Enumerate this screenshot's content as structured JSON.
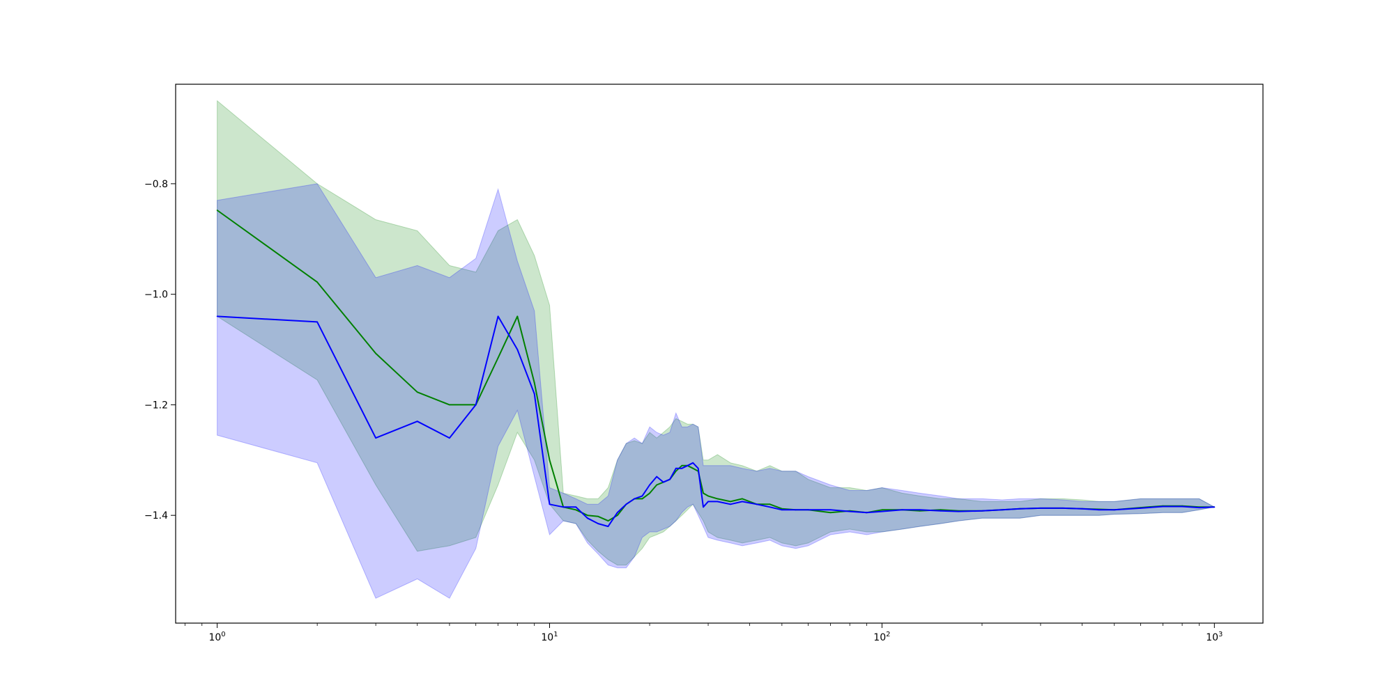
{
  "chart_data": {
    "type": "line",
    "title": "",
    "xlabel": "",
    "ylabel": "",
    "xscale": "log",
    "xlim": [
      0.75,
      1400
    ],
    "ylim": [
      -1.595,
      -0.62
    ],
    "grid": false,
    "legend": "none",
    "x_ticks": [
      {
        "value": 1,
        "base": "10",
        "exp": "0"
      },
      {
        "value": 10,
        "base": "10",
        "exp": "1"
      },
      {
        "value": 100,
        "base": "10",
        "exp": "2"
      },
      {
        "value": 1000,
        "base": "10",
        "exp": "3"
      }
    ],
    "y_ticks": [
      {
        "value": -0.8,
        "label": "−0.8"
      },
      {
        "value": -1.0,
        "label": "−1.0"
      },
      {
        "value": -1.2,
        "label": "−1.2"
      },
      {
        "value": -1.4,
        "label": "−1.4"
      }
    ],
    "series": [
      {
        "color": "#008000",
        "fill": "#008000",
        "x": [
          1,
          2,
          3,
          4,
          5,
          6,
          7,
          8,
          9,
          10,
          11,
          12,
          13,
          14,
          15,
          16,
          17,
          18,
          19,
          20,
          21,
          22,
          23,
          24,
          25,
          26,
          27,
          28,
          29,
          30,
          32,
          35,
          38,
          42,
          46,
          50,
          55,
          60,
          70,
          80,
          90,
          100,
          115,
          130,
          150,
          170,
          200,
          230,
          260,
          300,
          350,
          400,
          450,
          500,
          600,
          700,
          800,
          900,
          1000
        ],
        "y": [
          -0.848,
          -0.978,
          -1.107,
          -1.177,
          -1.2,
          -1.2,
          -1.115,
          -1.04,
          -1.16,
          -1.3,
          -1.385,
          -1.39,
          -1.4,
          -1.402,
          -1.41,
          -1.4,
          -1.38,
          -1.37,
          -1.37,
          -1.36,
          -1.345,
          -1.34,
          -1.335,
          -1.32,
          -1.31,
          -1.31,
          -1.315,
          -1.32,
          -1.36,
          -1.365,
          -1.37,
          -1.375,
          -1.37,
          -1.38,
          -1.38,
          -1.388,
          -1.39,
          -1.39,
          -1.395,
          -1.392,
          -1.395,
          -1.39,
          -1.39,
          -1.392,
          -1.39,
          -1.392,
          -1.392,
          -1.39,
          -1.388,
          -1.387,
          -1.387,
          -1.388,
          -1.389,
          -1.39,
          -1.386,
          -1.383,
          -1.383,
          -1.385,
          -1.385
        ],
        "upper": [
          -0.65,
          -0.8,
          -0.865,
          -0.885,
          -0.948,
          -0.96,
          -0.885,
          -0.865,
          -0.93,
          -1.02,
          -1.36,
          -1.365,
          -1.37,
          -1.37,
          -1.35,
          -1.3,
          -1.27,
          -1.265,
          -1.27,
          -1.25,
          -1.26,
          -1.25,
          -1.24,
          -1.225,
          -1.23,
          -1.235,
          -1.235,
          -1.24,
          -1.3,
          -1.3,
          -1.29,
          -1.305,
          -1.31,
          -1.32,
          -1.31,
          -1.32,
          -1.32,
          -1.335,
          -1.35,
          -1.35,
          -1.355,
          -1.35,
          -1.36,
          -1.365,
          -1.37,
          -1.37,
          -1.375,
          -1.375,
          -1.375,
          -1.37,
          -1.37,
          -1.372,
          -1.375,
          -1.375,
          -1.37,
          -1.37,
          -1.37,
          -1.37,
          -1.385
        ],
        "lower": [
          -1.04,
          -1.155,
          -1.345,
          -1.465,
          -1.455,
          -1.44,
          -1.345,
          -1.25,
          -1.3,
          -1.38,
          -1.41,
          -1.415,
          -1.445,
          -1.465,
          -1.48,
          -1.49,
          -1.49,
          -1.475,
          -1.46,
          -1.44,
          -1.435,
          -1.43,
          -1.42,
          -1.41,
          -1.4,
          -1.39,
          -1.38,
          -1.395,
          -1.41,
          -1.43,
          -1.44,
          -1.445,
          -1.45,
          -1.445,
          -1.44,
          -1.45,
          -1.455,
          -1.45,
          -1.43,
          -1.425,
          -1.43,
          -1.43,
          -1.425,
          -1.42,
          -1.415,
          -1.41,
          -1.405,
          -1.405,
          -1.405,
          -1.4,
          -1.4,
          -1.4,
          -1.4,
          -1.398,
          -1.397,
          -1.395,
          -1.395,
          -1.39,
          -1.385
        ]
      },
      {
        "color": "#0000ff",
        "fill": "#0000ff",
        "x": [
          1,
          2,
          3,
          4,
          5,
          6,
          7,
          8,
          9,
          10,
          11,
          12,
          13,
          14,
          15,
          16,
          17,
          18,
          19,
          20,
          21,
          22,
          23,
          24,
          25,
          26,
          27,
          28,
          29,
          30,
          32,
          35,
          38,
          42,
          46,
          50,
          55,
          60,
          70,
          80,
          90,
          100,
          115,
          130,
          150,
          170,
          200,
          230,
          260,
          300,
          350,
          400,
          450,
          500,
          600,
          700,
          800,
          900,
          1000
        ],
        "y": [
          -1.04,
          -1.05,
          -1.26,
          -1.23,
          -1.26,
          -1.2,
          -1.04,
          -1.1,
          -1.18,
          -1.38,
          -1.385,
          -1.385,
          -1.405,
          -1.415,
          -1.42,
          -1.395,
          -1.38,
          -1.37,
          -1.365,
          -1.345,
          -1.33,
          -1.34,
          -1.335,
          -1.315,
          -1.315,
          -1.31,
          -1.305,
          -1.315,
          -1.385,
          -1.375,
          -1.375,
          -1.38,
          -1.375,
          -1.38,
          -1.385,
          -1.39,
          -1.39,
          -1.39,
          -1.39,
          -1.393,
          -1.395,
          -1.393,
          -1.39,
          -1.39,
          -1.392,
          -1.393,
          -1.392,
          -1.39,
          -1.388,
          -1.387,
          -1.387,
          -1.388,
          -1.39,
          -1.39,
          -1.387,
          -1.384,
          -1.384,
          -1.386,
          -1.385
        ],
        "upper": [
          -0.83,
          -0.8,
          -0.97,
          -0.948,
          -0.97,
          -0.935,
          -0.81,
          -0.94,
          -1.03,
          -1.35,
          -1.36,
          -1.37,
          -1.38,
          -1.38,
          -1.365,
          -1.3,
          -1.27,
          -1.26,
          -1.27,
          -1.24,
          -1.25,
          -1.255,
          -1.25,
          -1.215,
          -1.24,
          -1.24,
          -1.235,
          -1.24,
          -1.31,
          -1.31,
          -1.31,
          -1.31,
          -1.315,
          -1.32,
          -1.315,
          -1.32,
          -1.32,
          -1.33,
          -1.345,
          -1.355,
          -1.355,
          -1.35,
          -1.355,
          -1.36,
          -1.365,
          -1.37,
          -1.37,
          -1.372,
          -1.37,
          -1.37,
          -1.372,
          -1.375,
          -1.375,
          -1.375,
          -1.37,
          -1.37,
          -1.37,
          -1.37,
          -1.385
        ],
        "lower": [
          -1.255,
          -1.305,
          -1.55,
          -1.515,
          -1.55,
          -1.46,
          -1.275,
          -1.21,
          -1.33,
          -1.435,
          -1.41,
          -1.415,
          -1.45,
          -1.47,
          -1.49,
          -1.495,
          -1.495,
          -1.475,
          -1.44,
          -1.43,
          -1.43,
          -1.425,
          -1.42,
          -1.41,
          -1.395,
          -1.385,
          -1.38,
          -1.4,
          -1.42,
          -1.44,
          -1.445,
          -1.45,
          -1.455,
          -1.45,
          -1.445,
          -1.455,
          -1.46,
          -1.455,
          -1.435,
          -1.43,
          -1.435,
          -1.43,
          -1.425,
          -1.42,
          -1.415,
          -1.41,
          -1.405,
          -1.405,
          -1.405,
          -1.4,
          -1.4,
          -1.4,
          -1.4,
          -1.398,
          -1.397,
          -1.395,
          -1.395,
          -1.39,
          -1.385
        ]
      }
    ]
  }
}
